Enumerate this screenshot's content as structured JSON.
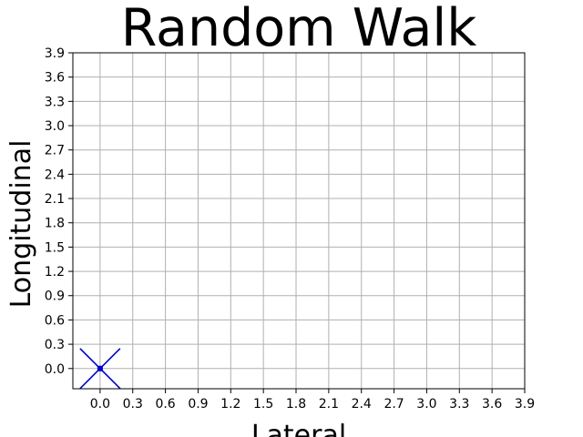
{
  "chart_data": {
    "type": "scatter",
    "title": "Random Walk",
    "xlabel": "Lateral",
    "ylabel": "Longitudinal",
    "xlim": [
      -0.25,
      3.9
    ],
    "ylim": [
      -0.25,
      3.9
    ],
    "grid": true,
    "xticks": [
      "0.0",
      "0.3",
      "0.6",
      "0.9",
      "1.2",
      "1.5",
      "1.8",
      "2.1",
      "2.4",
      "2.7",
      "3.0",
      "3.3",
      "3.6",
      "3.9"
    ],
    "yticks": [
      "0.0",
      "0.3",
      "0.6",
      "0.9",
      "1.2",
      "1.5",
      "1.8",
      "2.1",
      "2.4",
      "2.7",
      "3.0",
      "3.3",
      "3.6",
      "3.9"
    ],
    "series": [
      {
        "marker": "x",
        "color": "#0000cc",
        "points": [
          {
            "x": 0.0,
            "y": 0.0
          }
        ]
      }
    ]
  }
}
